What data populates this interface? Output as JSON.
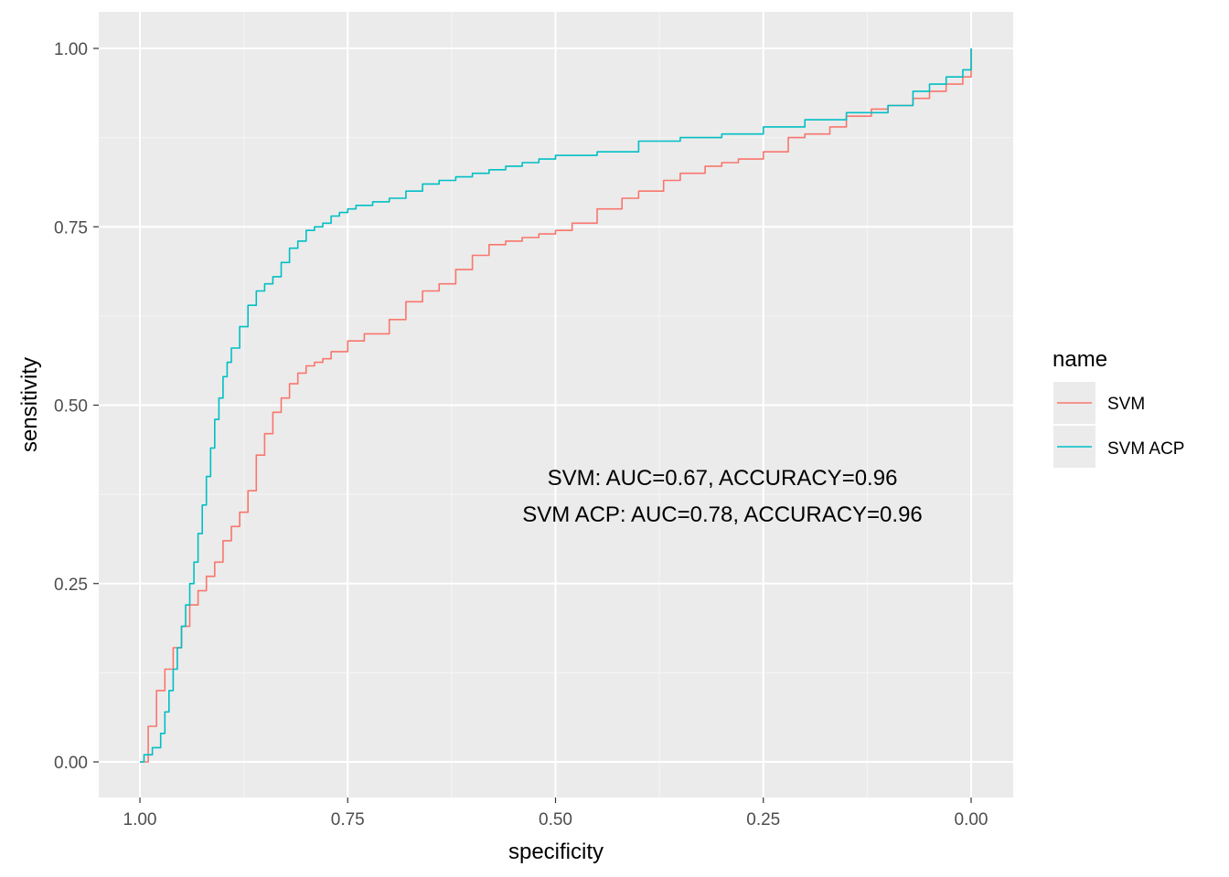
{
  "chart_data": {
    "type": "line",
    "xlabel": "specificity",
    "ylabel": "sensitivity",
    "x_reversed": true,
    "xlim": [
      1.0,
      0.0
    ],
    "ylim": [
      0.0,
      1.0
    ],
    "x_ticks": [
      1.0,
      0.75,
      0.5,
      0.25,
      0.0
    ],
    "x_tick_labels": [
      "1.00",
      "0.75",
      "0.50",
      "0.25",
      "0.00"
    ],
    "y_ticks": [
      0.0,
      0.25,
      0.5,
      0.75,
      1.0
    ],
    "y_tick_labels": [
      "0.00",
      "0.25",
      "0.50",
      "0.75",
      "1.00"
    ],
    "grid": true,
    "legend": {
      "title": "name",
      "placement": "right",
      "entries": [
        "SVM",
        "SVM ACP"
      ]
    },
    "annotations": [
      "SVM: AUC=0.67, ACCURACY=0.96",
      "SVM ACP: AUC=0.78, ACCURACY=0.96"
    ],
    "series": [
      {
        "name": "SVM",
        "color": "#F8766D",
        "x": [
          1.0,
          0.99,
          0.98,
          0.97,
          0.96,
          0.95,
          0.94,
          0.93,
          0.92,
          0.91,
          0.9,
          0.89,
          0.88,
          0.87,
          0.86,
          0.85,
          0.84,
          0.83,
          0.82,
          0.81,
          0.8,
          0.79,
          0.78,
          0.77,
          0.75,
          0.73,
          0.7,
          0.68,
          0.66,
          0.64,
          0.62,
          0.6,
          0.58,
          0.56,
          0.54,
          0.52,
          0.5,
          0.48,
          0.45,
          0.42,
          0.4,
          0.37,
          0.35,
          0.32,
          0.3,
          0.28,
          0.25,
          0.22,
          0.2,
          0.17,
          0.15,
          0.12,
          0.1,
          0.07,
          0.05,
          0.03,
          0.01,
          0.0,
          0.0
        ],
        "y": [
          0.0,
          0.05,
          0.1,
          0.13,
          0.16,
          0.19,
          0.22,
          0.24,
          0.26,
          0.28,
          0.31,
          0.33,
          0.35,
          0.38,
          0.43,
          0.46,
          0.49,
          0.51,
          0.53,
          0.545,
          0.555,
          0.56,
          0.565,
          0.575,
          0.59,
          0.6,
          0.62,
          0.645,
          0.66,
          0.67,
          0.69,
          0.71,
          0.725,
          0.73,
          0.735,
          0.74,
          0.745,
          0.755,
          0.775,
          0.79,
          0.8,
          0.815,
          0.825,
          0.835,
          0.84,
          0.845,
          0.855,
          0.875,
          0.88,
          0.89,
          0.905,
          0.915,
          0.92,
          0.93,
          0.94,
          0.95,
          0.96,
          0.97,
          1.0
        ]
      },
      {
        "name": "SVM ACP",
        "color": "#00BFC4",
        "x": [
          1.0,
          0.995,
          0.985,
          0.975,
          0.97,
          0.965,
          0.96,
          0.955,
          0.95,
          0.945,
          0.94,
          0.935,
          0.93,
          0.925,
          0.92,
          0.915,
          0.91,
          0.905,
          0.9,
          0.895,
          0.89,
          0.88,
          0.87,
          0.86,
          0.85,
          0.84,
          0.83,
          0.82,
          0.81,
          0.8,
          0.79,
          0.78,
          0.77,
          0.76,
          0.75,
          0.74,
          0.72,
          0.7,
          0.68,
          0.66,
          0.64,
          0.62,
          0.6,
          0.58,
          0.56,
          0.54,
          0.52,
          0.5,
          0.45,
          0.4,
          0.35,
          0.3,
          0.25,
          0.2,
          0.15,
          0.1,
          0.07,
          0.05,
          0.03,
          0.01,
          0.0,
          0.0
        ],
        "y": [
          0.0,
          0.01,
          0.02,
          0.04,
          0.07,
          0.1,
          0.13,
          0.16,
          0.19,
          0.22,
          0.25,
          0.28,
          0.32,
          0.36,
          0.4,
          0.44,
          0.48,
          0.51,
          0.54,
          0.56,
          0.58,
          0.61,
          0.64,
          0.66,
          0.67,
          0.68,
          0.7,
          0.72,
          0.73,
          0.745,
          0.75,
          0.755,
          0.765,
          0.77,
          0.775,
          0.78,
          0.785,
          0.79,
          0.8,
          0.81,
          0.815,
          0.82,
          0.825,
          0.83,
          0.835,
          0.84,
          0.845,
          0.85,
          0.855,
          0.87,
          0.875,
          0.88,
          0.89,
          0.9,
          0.91,
          0.92,
          0.94,
          0.95,
          0.96,
          0.97,
          0.975,
          1.0
        ]
      }
    ]
  }
}
